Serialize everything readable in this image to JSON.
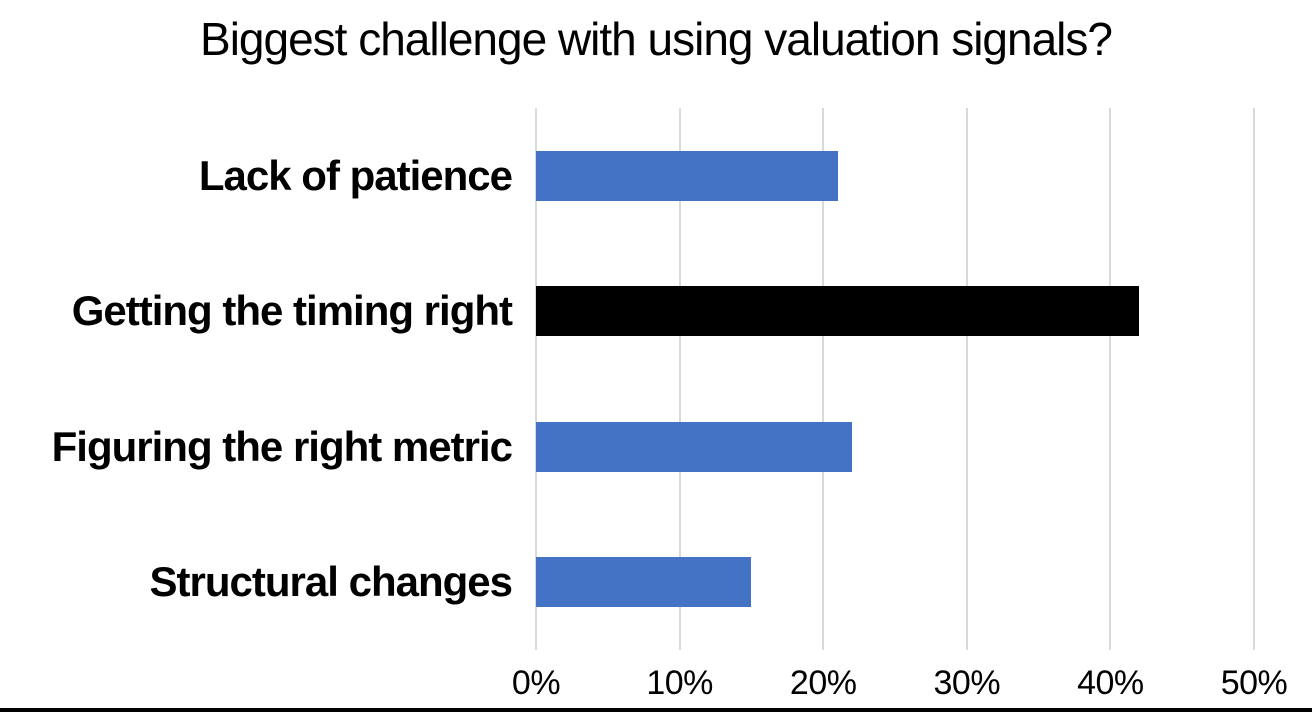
{
  "chart_data": {
    "type": "bar",
    "orientation": "horizontal",
    "title": "Biggest challenge with using valuation signals?",
    "categories": [
      "Lack of patience",
      "Getting the timing right",
      "Figuring the right metric",
      "Structural changes"
    ],
    "values": [
      21,
      42,
      22,
      15
    ],
    "value_unit": "%",
    "bar_colors": [
      "#4472C4",
      "#000000",
      "#4472C4",
      "#4472C4"
    ],
    "xlabel": "",
    "ylabel": "",
    "xlim": [
      0,
      50
    ],
    "xticks": [
      0,
      10,
      20,
      30,
      40,
      50
    ],
    "xtick_labels": [
      "0%",
      "10%",
      "20%",
      "30%",
      "40%",
      "50%"
    ],
    "grid": "vertical gridlines on",
    "legend_position": "none",
    "colors": {
      "default_bar": "#4472C4",
      "highlight_bar": "#000000",
      "gridline": "#D9D9D9",
      "text": "#000000",
      "background": "#FFFFFF",
      "bottom_border": "#000000"
    }
  }
}
